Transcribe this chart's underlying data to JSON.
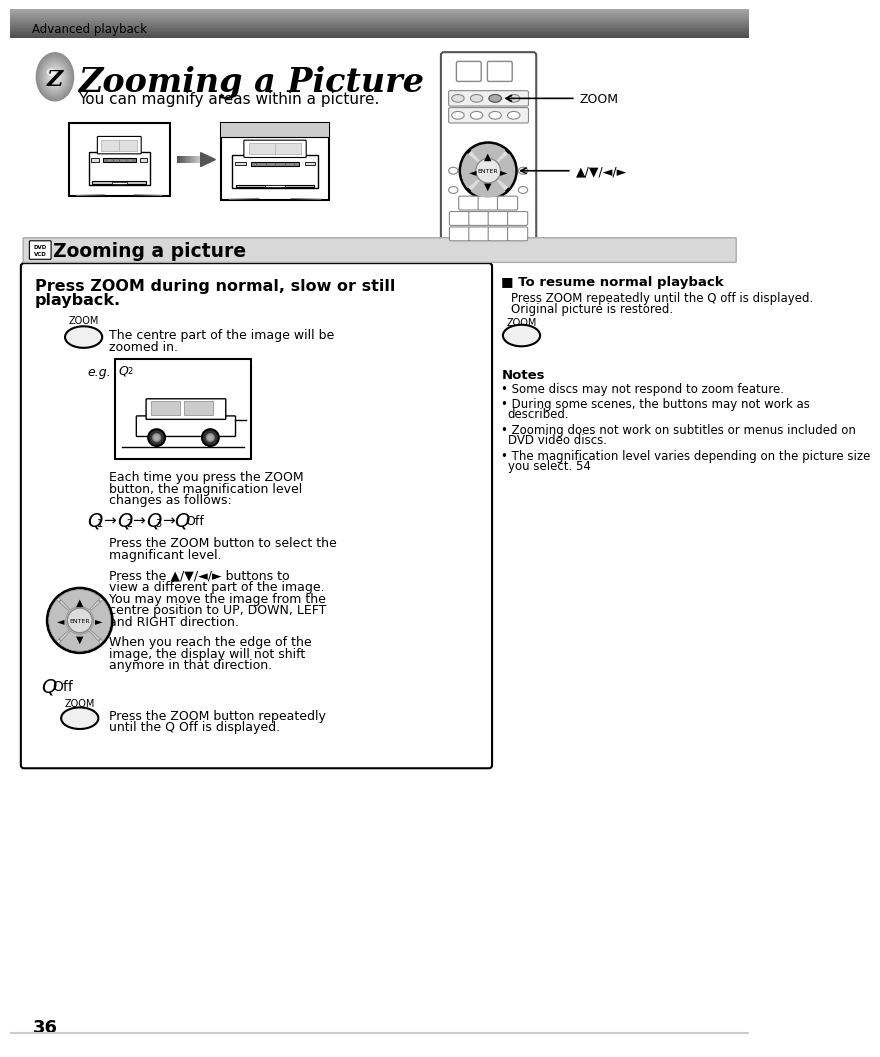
{
  "page_bg": "#ffffff",
  "header_text": "Advanced playback",
  "title_italic": "Zooming a Picture",
  "subtitle": "You can magnify areas within a picture.",
  "section_bar_text": "Zooming a picture",
  "main_box_title_line1": "Press ZOOM during normal, slow or still",
  "main_box_title_line2": "playback.",
  "text_center_part": "The centre part of the image will be\nzoomed in.",
  "text_each_time": "Each time you press the ZOOM\nbutton, the magnification level\nchanges as follows:",
  "text_press_zoom": "Press the ZOOM button to select the\nmagnificant level.",
  "text_press_arrows": "Press the ▲/▼/◄/► buttons to\nview a different part of the image.\nYou may move the image from the\ncentre position to UP, DOWN, LEFT\nand RIGHT direction.",
  "text_edge": "When you reach the edge of the\nimage, the display will not shift\nanymore in that direction.",
  "text_q_off_section": "Q Off",
  "text_press_zoom_repeatedly": "Press the ZOOM button repeatedly\nuntil the Q Off is displayed.",
  "right_title": "■ To resume normal playback",
  "right_text": "Press ZOOM repeatedly until the Q off is displayed.\nOriginal picture is restored.",
  "notes_title": "Notes",
  "notes": [
    "Some discs may not respond to zoom feature.",
    "During some scenes, the buttons may not work as\ndescribed.",
    "Zooming does not work on subtitles or menus included on\nDVD video discs.",
    "The magnification level varies depending on the picture size\nyou select. 54"
  ],
  "page_number": "36",
  "zoom_label": "ZOOM"
}
